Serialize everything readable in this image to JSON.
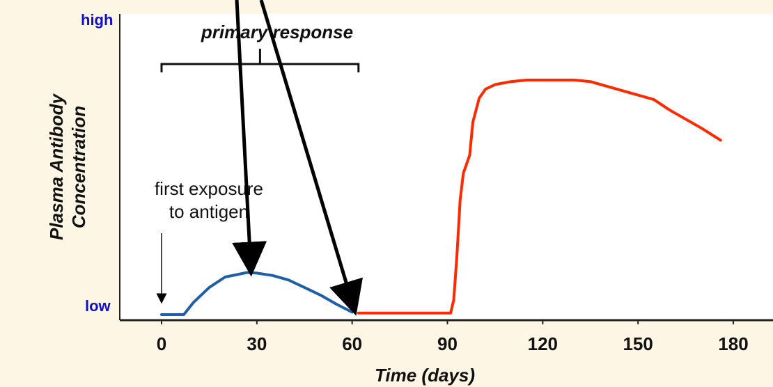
{
  "chart_data": {
    "type": "line",
    "title": "",
    "xlabel": "Time (days)",
    "ylabel_line1": "Plasma Antibody",
    "ylabel_line2": "Concentration",
    "y_high_label": "high",
    "y_low_label": "low",
    "xlim": [
      -10,
      185
    ],
    "ylim": [
      0,
      100
    ],
    "x_ticks": [
      0,
      30,
      60,
      90,
      120,
      150,
      180
    ],
    "grid": false,
    "colors": {
      "primary": "#1f5fa8",
      "secondary": "#ff2a00",
      "label_blue": "#1010cc",
      "background": "#fdf6e4"
    },
    "series": [
      {
        "color": "#1f5fa8",
        "points": [
          [
            0,
            0
          ],
          [
            7,
            0
          ],
          [
            10,
            4
          ],
          [
            15,
            9
          ],
          [
            20,
            12.5
          ],
          [
            27,
            14
          ],
          [
            30,
            13.8
          ],
          [
            35,
            13
          ],
          [
            40,
            11.5
          ],
          [
            45,
            9
          ],
          [
            50,
            6.5
          ],
          [
            55,
            3.5
          ],
          [
            60,
            0.8
          ]
        ]
      },
      {
        "color": "#ff2a00",
        "points": [
          [
            62,
            0.5
          ],
          [
            70,
            0.5
          ],
          [
            80,
            0.5
          ],
          [
            91,
            0.5
          ],
          [
            92,
            5
          ],
          [
            93,
            20
          ],
          [
            94,
            38
          ],
          [
            95,
            47
          ],
          [
            97,
            53
          ],
          [
            98,
            64
          ],
          [
            100,
            72
          ],
          [
            102,
            75
          ],
          [
            105,
            76.5
          ],
          [
            110,
            77.5
          ],
          [
            115,
            78
          ],
          [
            120,
            78
          ],
          [
            125,
            78
          ],
          [
            130,
            78
          ],
          [
            135,
            77.5
          ],
          [
            140,
            76
          ],
          [
            145,
            74.5
          ],
          [
            150,
            73
          ],
          [
            155,
            71.5
          ],
          [
            160,
            68
          ],
          [
            165,
            65
          ],
          [
            170,
            62
          ],
          [
            176,
            58
          ]
        ]
      }
    ],
    "annotations": {
      "bracket_label": "primary response",
      "bracket_range": [
        0,
        62
      ],
      "exposure_label_line1": "first exposure",
      "exposure_label_line2": "to antigen",
      "exposure_x": 0,
      "arrow_targets": [
        [
          28,
          14
        ],
        [
          60,
          0.8
        ]
      ]
    }
  }
}
